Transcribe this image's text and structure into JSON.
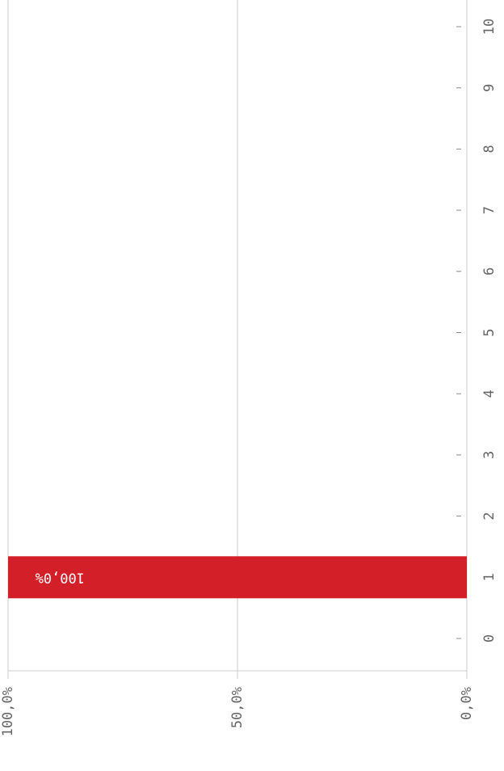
{
  "chart_data": {
    "type": "bar",
    "categories": [
      "0",
      "1",
      "2",
      "3",
      "4",
      "5",
      "6",
      "7",
      "8",
      "9",
      "10"
    ],
    "values": [
      0,
      100,
      0,
      0,
      0,
      0,
      0,
      0,
      0,
      0,
      0
    ],
    "value_labels": [
      null,
      "100,0%",
      null,
      null,
      null,
      null,
      null,
      null,
      null,
      null,
      null
    ],
    "color": "#d31f27",
    "ylim": [
      0,
      100
    ],
    "yticks": [
      {
        "value": 0,
        "label": "0,0%"
      },
      {
        "value": 50,
        "label": "50,0%"
      },
      {
        "value": 100,
        "label": "100,0%"
      }
    ],
    "grid": true
  }
}
